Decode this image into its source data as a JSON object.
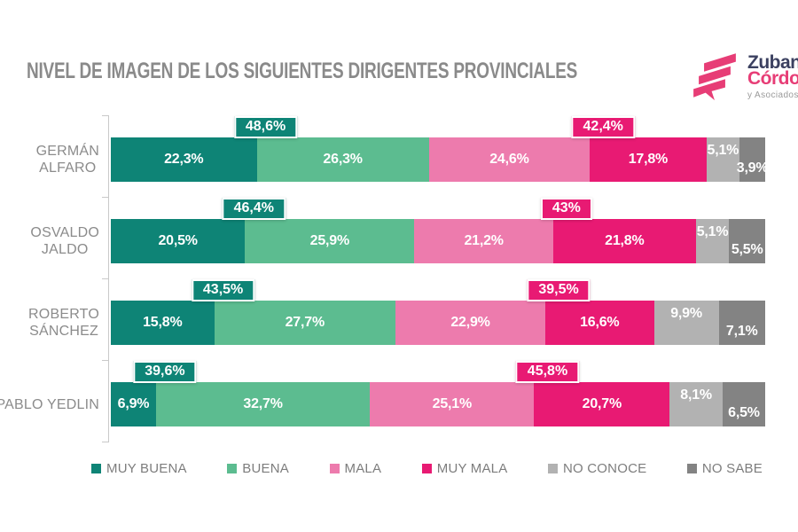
{
  "header": {
    "title": "NIVEL DE IMAGEN DE LOS SIGUIENTES DIRIGENTES PROVINCIALES",
    "title_color": "#8A8A8A"
  },
  "logo": {
    "name": "Zuban Córdoba y Asociados",
    "line1": "Zuban",
    "line2": "Córdoba",
    "line3": "y Asociados",
    "mark_color": "#E73D76",
    "line1_color": "#3B4060",
    "line2_color": "#E73D76",
    "line3_color": "#9A9A9A"
  },
  "chart_data": {
    "type": "bar",
    "orientation": "horizontal",
    "stacked": true,
    "title": "NIVEL DE IMAGEN DE LOS SIGUIENTES DIRIGENTES PROVINCIALES",
    "xlim": [
      0,
      100
    ],
    "grid": false,
    "legend_position": "bottom",
    "value_format": "percent-comma-decimal",
    "categories": [
      "GERMÁN ALFARO",
      "OSVALDO JALDO",
      "ROBERTO SÁNCHEZ",
      "PABLO YEDLIN"
    ],
    "category_lines": [
      [
        "GERMÁN",
        "ALFARO"
      ],
      [
        "OSVALDO",
        "JALDO"
      ],
      [
        "ROBERTO",
        "SÁNCHEZ"
      ],
      [
        "PABLO YEDLIN"
      ]
    ],
    "series": [
      {
        "name": "MUY BUENA",
        "color": "#0E8476",
        "values": [
          22.3,
          20.5,
          15.8,
          6.9
        ],
        "labels": [
          "22,3%",
          "20,5%",
          "15,8%",
          "6,9%"
        ]
      },
      {
        "name": "BUENA",
        "color": "#5CBC90",
        "values": [
          26.3,
          25.9,
          27.7,
          32.7
        ],
        "labels": [
          "26,3%",
          "25,9%",
          "27,7%",
          "32,7%"
        ]
      },
      {
        "name": "MALA",
        "color": "#ED7BAD",
        "values": [
          24.6,
          21.2,
          22.9,
          25.1
        ],
        "labels": [
          "24,6%",
          "21,2%",
          "22,9%",
          "25,1%"
        ]
      },
      {
        "name": "MUY MALA",
        "color": "#E81A73",
        "values": [
          17.8,
          21.8,
          16.6,
          20.7
        ],
        "labels": [
          "17,8%",
          "21,8%",
          "16,6%",
          "20,7%"
        ]
      },
      {
        "name": "NO CONOCE",
        "color": "#B2B2B2",
        "values": [
          5.1,
          5.1,
          9.9,
          8.1
        ],
        "labels": [
          "5,1%",
          "5,1%",
          "9,9%",
          "8,1%"
        ]
      },
      {
        "name": "NO SABE",
        "color": "#838383",
        "values": [
          3.9,
          5.5,
          7.1,
          6.5
        ],
        "labels": [
          "3,9%",
          "5,5%",
          "7,1%",
          "6,5%"
        ]
      }
    ],
    "callouts": {
      "positive": {
        "name": "MUY BUENA + BUENA",
        "color": "#0E8476",
        "values": [
          48.6,
          46.4,
          43.5,
          39.6
        ],
        "labels": [
          "48,6%",
          "46,4%",
          "43,5%",
          "39,6%"
        ]
      },
      "negative": {
        "name": "MALA + MUY MALA",
        "color": "#E81A73",
        "values": [
          42.4,
          43,
          39.5,
          45.8
        ],
        "labels": [
          "42,4%",
          "43%",
          "39,5%",
          "45,8%"
        ]
      }
    }
  },
  "legend": {
    "items": [
      {
        "label": "MUY BUENA",
        "color": "#0E8476"
      },
      {
        "label": "BUENA",
        "color": "#5CBC90"
      },
      {
        "label": "MALA",
        "color": "#ED7BAD"
      },
      {
        "label": "MUY MALA",
        "color": "#E81A73"
      },
      {
        "label": "NO CONOCE",
        "color": "#B2B2B2"
      },
      {
        "label": "NO SABE",
        "color": "#838383"
      }
    ]
  }
}
